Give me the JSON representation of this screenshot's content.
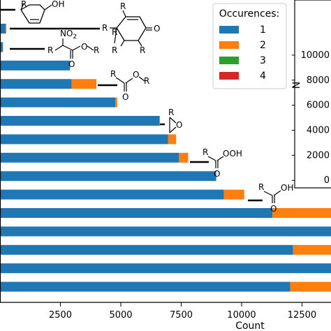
{
  "chart_data": [
    {
      "type": "bar",
      "orientation": "horizontal",
      "stacked": true,
      "xlabel": "Count",
      "xlim": [
        0,
        13700
      ],
      "xticks": [
        2500,
        5000,
        7500,
        10000,
        12500
      ],
      "xtick_labels": [
        "2500",
        "5000",
        "7500",
        "10000",
        "12500"
      ],
      "legend": {
        "title": "Occurences:",
        "placement": "top-right"
      },
      "colors": [
        "#1f77b4",
        "#ff7f0e",
        "#2ca02c",
        "#d62728"
      ],
      "series": [
        {
          "name": "1",
          "values": [
            230,
            120,
            2900,
            2960,
            4770,
            6610,
            6960,
            7410,
            8950,
            9270,
            11280,
            13700,
            12130,
            13700,
            12010
          ]
        },
        {
          "name": "2",
          "values": [
            30,
            10,
            0,
            1030,
            80,
            0,
            330,
            380,
            0,
            840,
            2420,
            0,
            1570,
            0,
            1690
          ]
        },
        {
          "name": "3",
          "values": [
            0,
            0,
            0,
            0,
            0,
            0,
            0,
            0,
            0,
            0,
            0,
            0,
            0,
            0,
            0
          ]
        },
        {
          "name": "4",
          "values": [
            0,
            0,
            0,
            0,
            0,
            0,
            0,
            0,
            0,
            0,
            0,
            0,
            0,
            0,
            0
          ]
        }
      ]
    },
    {
      "type": "bar",
      "ylabel": "N",
      "ylim": [
        -600,
        14400
      ],
      "yticks": [
        0,
        2000,
        4000,
        6000,
        8000,
        10000
      ],
      "ytick_labels": [
        "0",
        "2000",
        "4000",
        "6000",
        "8000",
        "10000"
      ]
    }
  ],
  "structures": {
    "phenol": {
      "r": "R",
      "oh": "OH"
    },
    "cyclohexenone": {
      "r1": "R",
      "r2": "R",
      "r3": "R",
      "r4": "R",
      "r5": "R",
      "o": "O"
    },
    "nitro": {
      "no2": "NO",
      "no2_sub": "2",
      "r1": "R",
      "r2": "R",
      "o1": "O",
      "o2": "O"
    },
    "ester": {
      "r1": "R",
      "r2": "R",
      "o1": "O",
      "o2": "O"
    },
    "epoxide": {
      "r": "R",
      "o": "O"
    },
    "peracid": {
      "r": "R",
      "ooh": "OOH",
      "o": "O"
    },
    "acid": {
      "r": "R",
      "oh": "OH",
      "o": "O"
    }
  }
}
